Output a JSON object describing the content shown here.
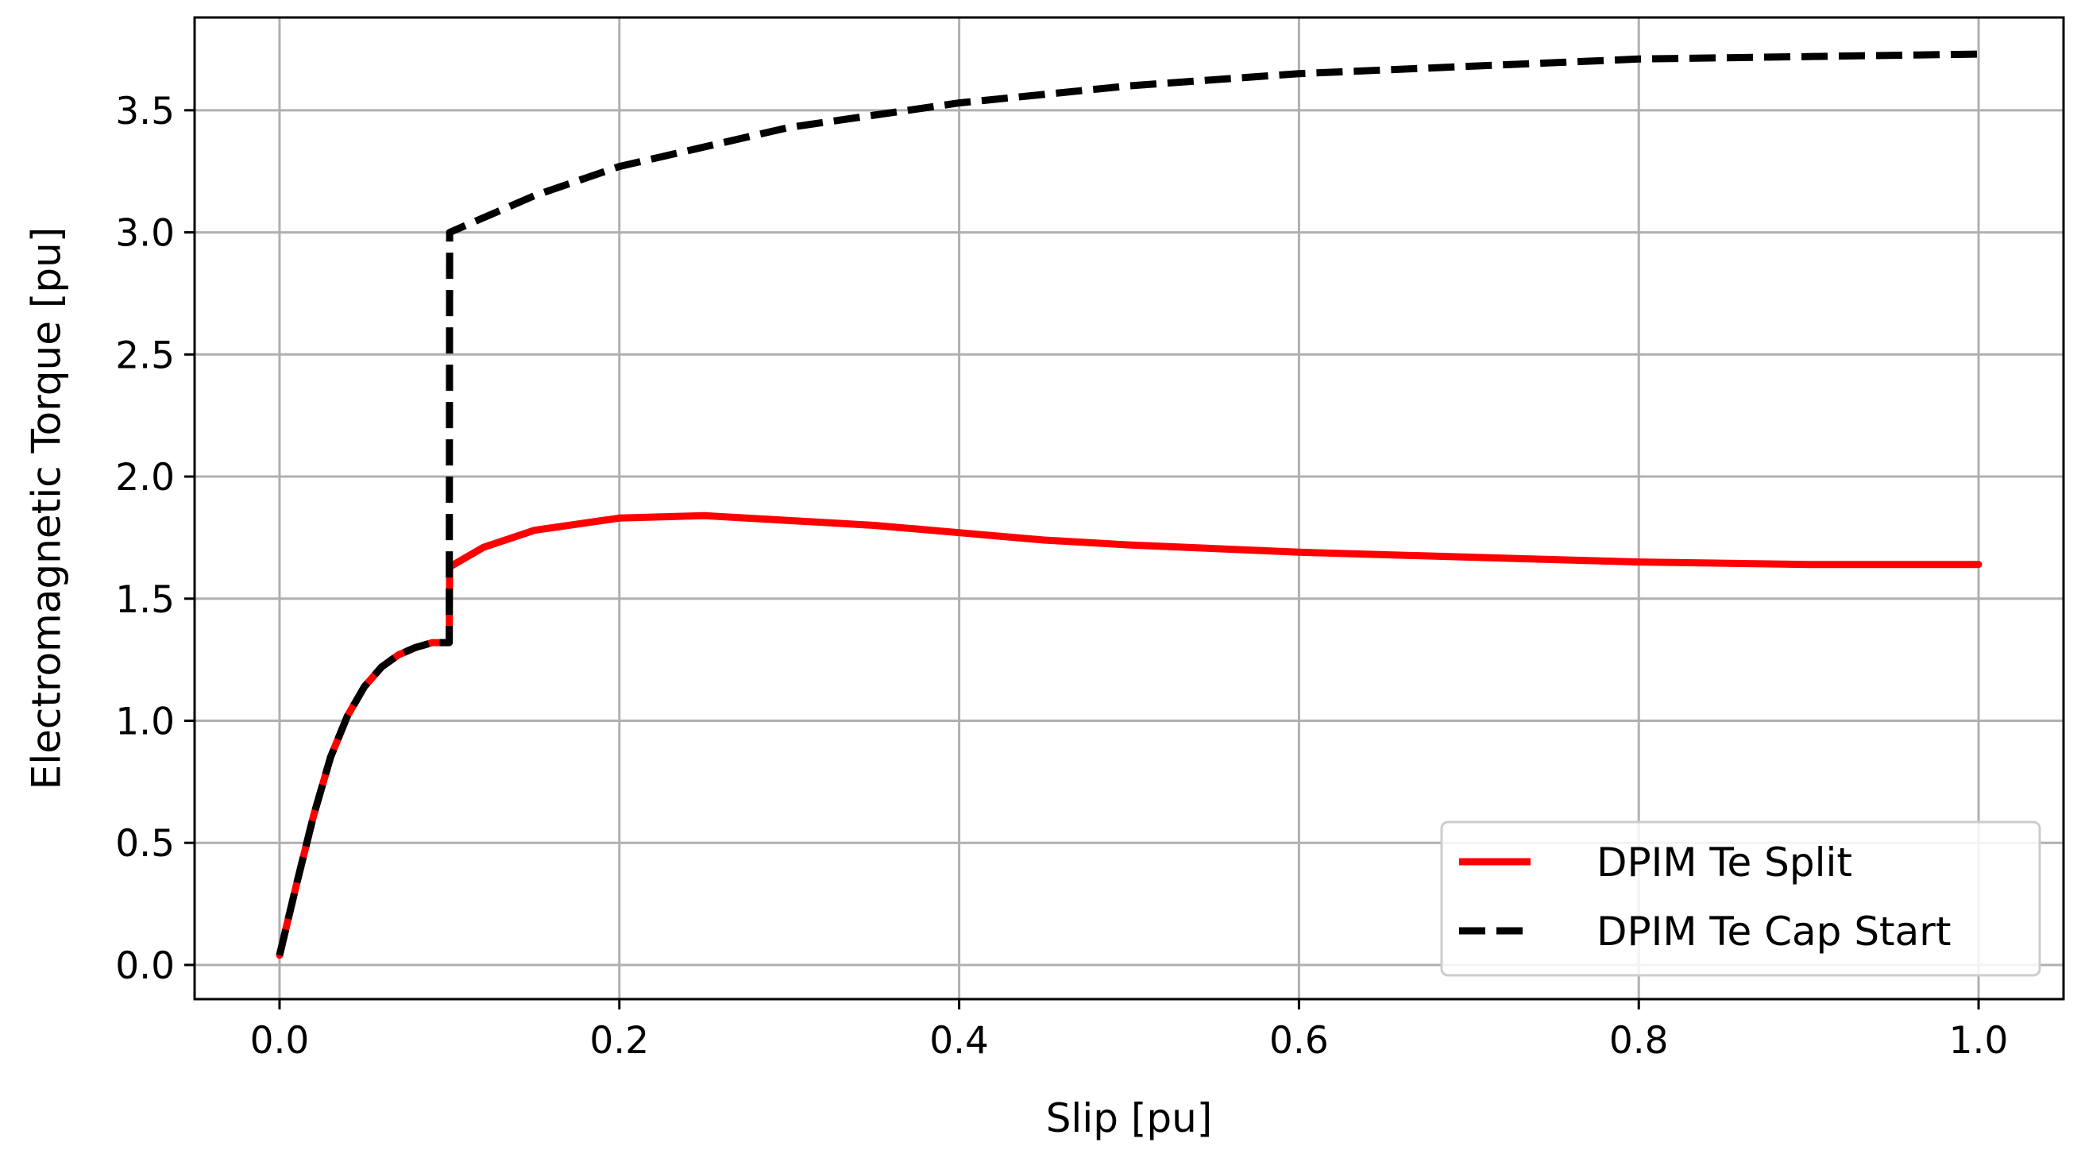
{
  "chart_data": {
    "type": "line",
    "title": "",
    "xlabel": "Slip [pu]",
    "ylabel": "Electromagnetic Torque [pu]",
    "xlim": [
      -0.05,
      1.05
    ],
    "ylim": [
      -0.14,
      3.88
    ],
    "x_ticks": [
      0.0,
      0.2,
      0.4,
      0.6,
      0.8,
      1.0
    ],
    "x_tick_labels": [
      "0.0",
      "0.2",
      "0.4",
      "0.6",
      "0.8",
      "1.0"
    ],
    "y_ticks": [
      0.0,
      0.5,
      1.0,
      1.5,
      2.0,
      2.5,
      3.0,
      3.5
    ],
    "y_tick_labels": [
      "0.0",
      "0.5",
      "1.0",
      "1.5",
      "2.0",
      "2.5",
      "3.0",
      "3.5"
    ],
    "grid": true,
    "legend_position": "lower-right",
    "series": [
      {
        "name": "DPIM Te Split",
        "color": "#ff0000",
        "style": "solid",
        "x": [
          0.0,
          0.01,
          0.02,
          0.03,
          0.04,
          0.05,
          0.06,
          0.07,
          0.08,
          0.09,
          0.0999,
          0.1001,
          0.12,
          0.15,
          0.2,
          0.25,
          0.3,
          0.35,
          0.4,
          0.45,
          0.5,
          0.6,
          0.7,
          0.8,
          0.9,
          1.0
        ],
        "y": [
          0.04,
          0.33,
          0.61,
          0.85,
          1.02,
          1.14,
          1.22,
          1.27,
          1.3,
          1.32,
          1.32,
          1.63,
          1.71,
          1.78,
          1.83,
          1.84,
          1.82,
          1.8,
          1.77,
          1.74,
          1.72,
          1.69,
          1.67,
          1.65,
          1.64,
          1.64
        ]
      },
      {
        "name": "DPIM Te Cap Start",
        "color": "#000000",
        "style": "dashed",
        "x": [
          0.0,
          0.01,
          0.02,
          0.03,
          0.04,
          0.05,
          0.06,
          0.07,
          0.08,
          0.09,
          0.0999,
          0.1001,
          0.15,
          0.2,
          0.3,
          0.4,
          0.5,
          0.6,
          0.7,
          0.8,
          0.9,
          1.0
        ],
        "y": [
          0.04,
          0.33,
          0.61,
          0.85,
          1.02,
          1.14,
          1.22,
          1.27,
          1.3,
          1.32,
          1.32,
          3.0,
          3.15,
          3.27,
          3.43,
          3.53,
          3.6,
          3.65,
          3.68,
          3.71,
          3.72,
          3.73
        ]
      }
    ]
  }
}
